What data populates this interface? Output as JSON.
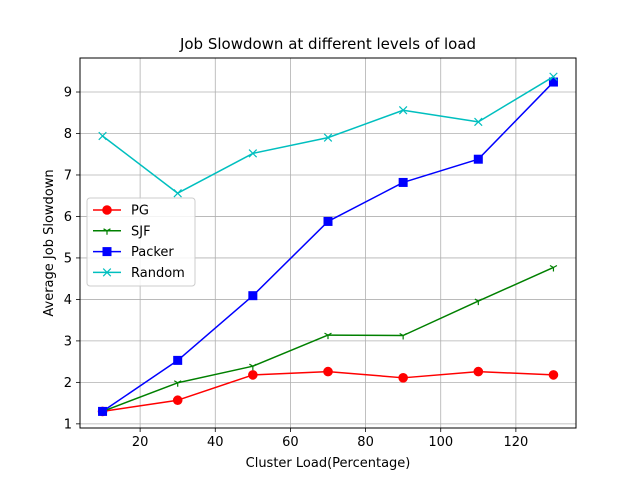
{
  "chart_data": {
    "type": "line",
    "title": "Job Slowdown at different levels of load",
    "xlabel": "Cluster Load(Percentage)",
    "ylabel": "Average Job Slowdown",
    "x": [
      10,
      30,
      50,
      70,
      90,
      110,
      130
    ],
    "xlim": [
      4,
      136
    ],
    "ylim": [
      0.9,
      9.82
    ],
    "xticks": [
      "20",
      "40",
      "60",
      "80",
      "100",
      "120"
    ],
    "yticks": [
      "1",
      "2",
      "3",
      "4",
      "5",
      "6",
      "7",
      "8",
      "9"
    ],
    "grid": true,
    "legend_position": "center-left",
    "series": [
      {
        "name": "PG",
        "color": "#ff0000",
        "marker": "circle",
        "values": [
          1.3,
          1.57,
          2.18,
          2.26,
          2.11,
          2.26,
          2.18
        ]
      },
      {
        "name": "SJF",
        "color": "#008000",
        "marker": "tri-down",
        "values": [
          1.3,
          1.99,
          2.39,
          3.14,
          3.13,
          3.96,
          4.77
        ]
      },
      {
        "name": "Packer",
        "color": "#0000ff",
        "marker": "square",
        "values": [
          1.3,
          2.53,
          4.09,
          5.88,
          6.82,
          7.38,
          9.24
        ]
      },
      {
        "name": "Random",
        "color": "#00bfbf",
        "marker": "x",
        "values": [
          7.94,
          6.56,
          7.52,
          7.9,
          8.56,
          8.28,
          9.37
        ]
      }
    ]
  }
}
